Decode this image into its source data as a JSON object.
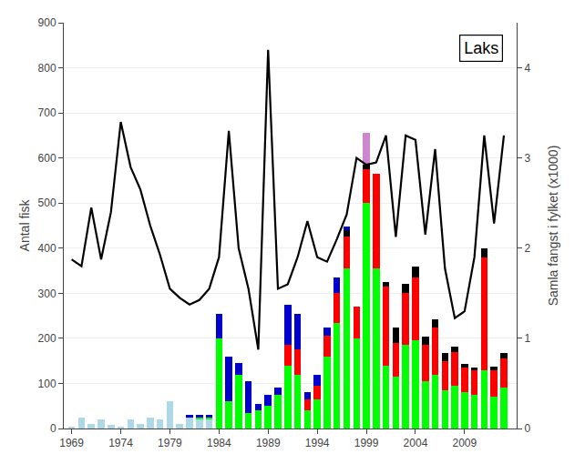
{
  "chart_data": {
    "type": "bar",
    "stacked": true,
    "grid": true,
    "x": [
      1969,
      1970,
      1971,
      1972,
      1973,
      1974,
      1975,
      1976,
      1977,
      1978,
      1979,
      1980,
      1981,
      1982,
      1983,
      1984,
      1985,
      1986,
      1987,
      1988,
      1989,
      1990,
      1991,
      1992,
      1993,
      1994,
      1995,
      1996,
      1997,
      1998,
      1999,
      2000,
      2001,
      2002,
      2003,
      2004,
      2005,
      2006,
      2007,
      2008,
      2009,
      2010,
      2011,
      2012,
      2013
    ],
    "xlim": [
      1968.2,
      2014.3
    ],
    "xticks": [
      1969,
      1974,
      1979,
      1984,
      1989,
      1994,
      1999,
      2004,
      2009
    ],
    "ylabel": "Antal fisk",
    "ylim": [
      0,
      900
    ],
    "yticks": [
      0,
      100,
      200,
      300,
      400,
      500,
      600,
      700,
      800,
      900
    ],
    "y2label": "Samla fangst i fylket (x1000)",
    "y2lim": [
      0,
      4.5
    ],
    "y2ticks": [
      0,
      1,
      2,
      3,
      4
    ],
    "annotations": [
      "Laks"
    ],
    "series": [
      {
        "color": "#ADD8E6",
        "values": [
          5,
          25,
          10,
          20,
          8,
          5,
          20,
          10,
          25,
          20,
          60,
          10,
          25,
          20,
          20,
          0,
          0,
          0,
          0,
          0,
          0,
          0,
          0,
          0,
          0,
          0,
          0,
          0,
          0,
          0,
          0,
          0,
          0,
          0,
          0,
          0,
          0,
          0,
          0,
          0,
          0,
          0,
          0,
          0,
          0
        ]
      },
      {
        "color": "#00FF00",
        "values": [
          0,
          0,
          0,
          0,
          0,
          0,
          0,
          0,
          0,
          0,
          0,
          0,
          0,
          5,
          5,
          200,
          60,
          120,
          35,
          40,
          50,
          75,
          140,
          120,
          40,
          65,
          160,
          235,
          355,
          200,
          500,
          355,
          140,
          115,
          185,
          195,
          105,
          120,
          85,
          95,
          80,
          75,
          130,
          70,
          90
        ]
      },
      {
        "color": "#FF0000",
        "values": [
          0,
          0,
          0,
          0,
          0,
          0,
          0,
          0,
          0,
          0,
          0,
          0,
          0,
          0,
          0,
          0,
          0,
          0,
          0,
          0,
          0,
          0,
          45,
          55,
          25,
          30,
          45,
          65,
          70,
          70,
          75,
          210,
          175,
          75,
          115,
          140,
          80,
          105,
          65,
          75,
          55,
          55,
          250,
          60,
          65
        ]
      },
      {
        "color": "#000000",
        "values": [
          0,
          0,
          0,
          0,
          0,
          0,
          0,
          0,
          0,
          0,
          0,
          0,
          0,
          0,
          0,
          0,
          0,
          0,
          0,
          0,
          0,
          0,
          0,
          0,
          0,
          0,
          0,
          0,
          15,
          0,
          10,
          0,
          10,
          35,
          20,
          25,
          18,
          18,
          18,
          12,
          8,
          5,
          20,
          8,
          12
        ]
      },
      {
        "color": "#CC88CC",
        "values": [
          0,
          0,
          0,
          0,
          0,
          0,
          0,
          0,
          0,
          0,
          0,
          0,
          0,
          0,
          0,
          0,
          0,
          0,
          0,
          0,
          0,
          0,
          0,
          0,
          0,
          0,
          0,
          0,
          0,
          0,
          70,
          0,
          0,
          0,
          0,
          0,
          0,
          0,
          0,
          0,
          0,
          0,
          0,
          0,
          0
        ]
      },
      {
        "color": "#0000CC",
        "values": [
          0,
          0,
          0,
          0,
          0,
          0,
          0,
          0,
          0,
          0,
          0,
          0,
          5,
          5,
          5,
          55,
          100,
          25,
          70,
          15,
          25,
          15,
          90,
          80,
          15,
          25,
          18,
          35,
          8,
          0,
          0,
          0,
          0,
          0,
          0,
          0,
          0,
          0,
          0,
          0,
          0,
          0,
          0,
          0,
          0
        ]
      },
      {
        "type": "line",
        "axis": "y2",
        "color": "#000000",
        "values": [
          1.875,
          1.8,
          2.45,
          1.875,
          2.4,
          3.4,
          2.9,
          2.65,
          2.25,
          1.925,
          1.55,
          1.45,
          1.375,
          1.425,
          1.55,
          1.9,
          3.3,
          2.0,
          1.55,
          0.875,
          4.2,
          1.55,
          1.6,
          1.9,
          2.3,
          1.9,
          1.85,
          2.1,
          2.375,
          3.0,
          2.925,
          2.95,
          3.25,
          2.125,
          3.25,
          3.2,
          2.15,
          3.1,
          1.775,
          1.225,
          1.3,
          1.9,
          3.25,
          2.275,
          3.25
        ]
      }
    ]
  }
}
